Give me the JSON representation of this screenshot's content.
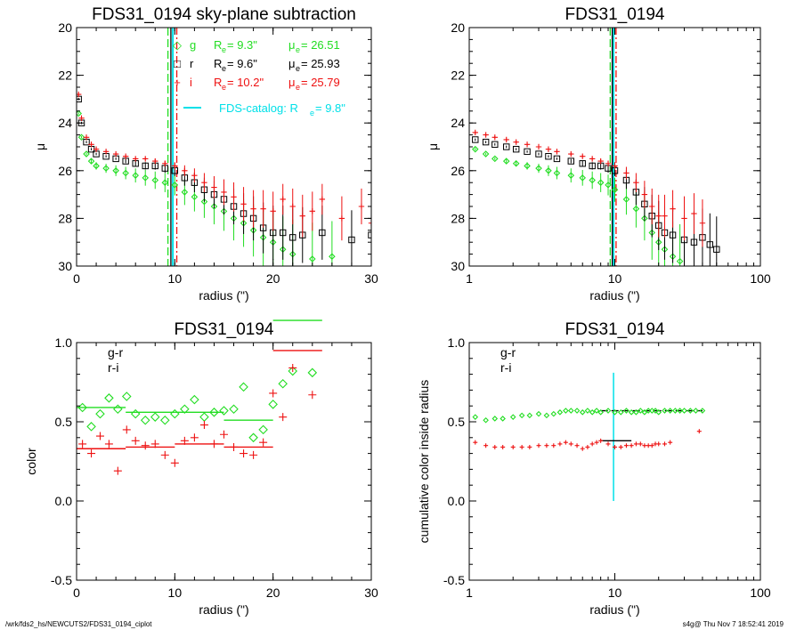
{
  "colors": {
    "g": "#22dd22",
    "r": "#000000",
    "i": "#ee1111",
    "catalog": "#00e0e8"
  },
  "footer": {
    "left": "/wrk/fds2_hs/NEWCUTS2/FDS31_0194_ciplot",
    "right": "s4g@  Thu Nov  7 18:52:41 2019"
  },
  "chart_data": [
    {
      "id": "top-left",
      "type": "scatter",
      "title": "FDS31_0194 sky-plane subtraction",
      "xlabel": "radius (\")",
      "ylabel": "μ",
      "xlim": [
        0,
        30
      ],
      "ylim": [
        30,
        20
      ],
      "xscale": "linear",
      "xticks": [
        "0",
        "10",
        "20",
        "30"
      ],
      "yticks": [
        "20",
        "22",
        "24",
        "26",
        "28",
        "30"
      ],
      "legend": [
        {
          "band": "g",
          "marker": "◇",
          "re_label": "R",
          "re_sub": "e",
          "re_value": "=  9.3\"",
          "mu_label": "μ",
          "mu_sub": "e",
          "mu_value": "= 26.51"
        },
        {
          "band": "r",
          "marker": "□",
          "re_label": "R",
          "re_sub": "e",
          "re_value": "=  9.6\"",
          "mu_label": "μ",
          "mu_sub": "e",
          "mu_value": "= 25.93"
        },
        {
          "band": "i",
          "marker": "+",
          "re_label": "R",
          "re_sub": "e",
          "re_value": "= 10.2\"",
          "mu_label": "μ",
          "mu_sub": "e",
          "mu_value": "= 25.79"
        }
      ],
      "catalog_legend": {
        "text": "FDS-catalog: R",
        "sub": "e",
        "value": "=   9.8\""
      },
      "vlines": {
        "g": 9.3,
        "r": 9.6,
        "i": 10.2,
        "catalog": 9.8
      },
      "series": [
        {
          "band": "g",
          "x": [
            0.2,
            0.5,
            1,
            1.5,
            2,
            3,
            4,
            5,
            6,
            7,
            8,
            9,
            10,
            11,
            12,
            13,
            14,
            15,
            16,
            17,
            18,
            19,
            20,
            21,
            22,
            24,
            26
          ],
          "y": [
            23.6,
            24.6,
            25.3,
            25.6,
            25.8,
            25.9,
            26.0,
            26.1,
            26.2,
            26.3,
            26.4,
            26.5,
            26.6,
            26.9,
            27.1,
            27.3,
            27.5,
            27.7,
            28.0,
            28.2,
            28.5,
            28.8,
            29.0,
            29.3,
            29.5,
            29.7,
            29.6
          ]
        },
        {
          "band": "r",
          "x": [
            0.2,
            0.5,
            1,
            1.5,
            2,
            3,
            4,
            5,
            6,
            7,
            8,
            9,
            10,
            11,
            12,
            13,
            14,
            15,
            16,
            17,
            18,
            19,
            20,
            21,
            22,
            23,
            25,
            28,
            30
          ],
          "y": [
            23.0,
            24.0,
            24.8,
            25.1,
            25.3,
            25.4,
            25.5,
            25.6,
            25.7,
            25.8,
            25.8,
            25.9,
            26.0,
            26.3,
            26.5,
            26.8,
            27.0,
            27.2,
            27.5,
            27.8,
            28.0,
            28.4,
            28.6,
            28.6,
            28.8,
            28.7,
            28.6,
            28.9,
            28.7
          ]
        },
        {
          "band": "i",
          "x": [
            0.2,
            0.5,
            1,
            1.5,
            2,
            3,
            4,
            5,
            6,
            7,
            8,
            9,
            10,
            11,
            12,
            13,
            14,
            15,
            16,
            17,
            18,
            19,
            20,
            21,
            22,
            23,
            24,
            25,
            27,
            29,
            30
          ],
          "y": [
            22.8,
            23.8,
            24.6,
            24.9,
            25.1,
            25.2,
            25.3,
            25.4,
            25.5,
            25.5,
            25.6,
            25.7,
            25.8,
            26.0,
            26.2,
            26.5,
            26.7,
            26.9,
            27.1,
            27.4,
            27.6,
            27.6,
            27.7,
            27.2,
            27.5,
            27.9,
            27.7,
            27.2,
            28.0,
            27.5,
            28.2
          ]
        }
      ]
    },
    {
      "id": "top-right",
      "type": "scatter",
      "title": "FDS31_0194",
      "xlabel": "radius (\")",
      "ylabel": "μ",
      "xlim": [
        1,
        100
      ],
      "ylim": [
        30,
        20
      ],
      "xscale": "log",
      "xticks": [
        "1",
        "10",
        "100"
      ],
      "yticks": [
        "20",
        "22",
        "24",
        "26",
        "28",
        "30"
      ],
      "vlines": {
        "g": 9.3,
        "r": 9.6,
        "i": 10.2,
        "catalog": 9.8
      },
      "series": [
        {
          "band": "g",
          "x": [
            1.1,
            1.3,
            1.5,
            1.8,
            2.1,
            2.5,
            3,
            3.5,
            4,
            5,
            6,
            7,
            8,
            9,
            10,
            12,
            14,
            16,
            18,
            20,
            22,
            25,
            28
          ],
          "y": [
            25.1,
            25.3,
            25.5,
            25.6,
            25.7,
            25.8,
            25.9,
            26.0,
            26.1,
            26.2,
            26.3,
            26.4,
            26.5,
            26.6,
            26.8,
            27.2,
            27.6,
            28.0,
            28.6,
            29.0,
            29.3,
            29.6,
            29.8
          ]
        },
        {
          "band": "r",
          "x": [
            1.1,
            1.3,
            1.5,
            1.8,
            2.1,
            2.5,
            3,
            3.5,
            4,
            5,
            6,
            7,
            8,
            9,
            10,
            12,
            14,
            16,
            18,
            20,
            22,
            25,
            30,
            35,
            40,
            45,
            50
          ],
          "y": [
            24.7,
            24.8,
            24.9,
            25.0,
            25.1,
            25.2,
            25.3,
            25.4,
            25.5,
            25.6,
            25.7,
            25.8,
            25.8,
            25.9,
            26.0,
            26.4,
            26.9,
            27.4,
            27.9,
            28.3,
            28.6,
            28.7,
            28.9,
            29.0,
            28.8,
            29.1,
            29.3
          ]
        },
        {
          "band": "i",
          "x": [
            1.1,
            1.3,
            1.5,
            1.8,
            2.1,
            2.5,
            3,
            3.5,
            4,
            5,
            6,
            7,
            8,
            9,
            10,
            12,
            14,
            16,
            18,
            20,
            22,
            25,
            30,
            35,
            40
          ],
          "y": [
            24.4,
            24.5,
            24.6,
            24.7,
            24.8,
            24.9,
            25.0,
            25.1,
            25.2,
            25.3,
            25.4,
            25.5,
            25.6,
            25.7,
            25.8,
            26.1,
            26.5,
            27.0,
            27.5,
            27.9,
            27.9,
            27.6,
            28.0,
            27.8,
            28.2
          ]
        }
      ]
    },
    {
      "id": "bottom-left",
      "type": "scatter",
      "title": "FDS31_0194",
      "xlabel": "radius (\")",
      "ylabel": "color",
      "xlim": [
        0,
        30
      ],
      "ylim": [
        -0.5,
        1.0
      ],
      "xscale": "linear",
      "xticks": [
        "0",
        "10",
        "20",
        "30"
      ],
      "yticks": [
        "-0.5",
        "0.0",
        "0.5",
        "1.0"
      ],
      "legend": [
        {
          "band": "g",
          "text": "g-r"
        },
        {
          "band": "i",
          "text": "r-i"
        }
      ],
      "series": [
        {
          "name": "g-r",
          "band": "g",
          "x": [
            0.6,
            1.5,
            2.4,
            3.3,
            4.2,
            5.1,
            6,
            7,
            8,
            9,
            10,
            11,
            12,
            13,
            14,
            15,
            16,
            17,
            18,
            19,
            20,
            21,
            22,
            24
          ],
          "y": [
            0.59,
            0.47,
            0.55,
            0.65,
            0.58,
            0.66,
            0.55,
            0.51,
            0.53,
            0.51,
            0.55,
            0.58,
            0.64,
            0.53,
            0.56,
            0.57,
            0.58,
            0.72,
            0.4,
            0.45,
            0.61,
            0.74,
            0.82,
            0.81
          ]
        },
        {
          "name": "r-i",
          "band": "i",
          "x": [
            0.6,
            1.5,
            2.4,
            3.3,
            4.2,
            5.1,
            6,
            7,
            8,
            9,
            10,
            11,
            12,
            13,
            14,
            15,
            16,
            17,
            18,
            19,
            20,
            21,
            22,
            24
          ],
          "y": [
            0.36,
            0.3,
            0.41,
            0.36,
            0.19,
            0.45,
            0.38,
            0.35,
            0.36,
            0.29,
            0.24,
            0.38,
            0.4,
            0.48,
            0.36,
            0.42,
            0.34,
            0.3,
            0.29,
            0.37,
            0.68,
            0.53,
            0.84,
            0.67
          ]
        }
      ],
      "segments": [
        {
          "band": "g",
          "x": [
            0,
            5
          ],
          "y": 0.59
        },
        {
          "band": "g",
          "x": [
            5,
            10
          ],
          "y": 0.56
        },
        {
          "band": "g",
          "x": [
            10,
            15
          ],
          "y": 0.56
        },
        {
          "band": "g",
          "x": [
            15,
            20
          ],
          "y": 0.51
        },
        {
          "band": "g",
          "x": [
            20,
            25
          ],
          "y": 1.14
        },
        {
          "band": "i",
          "x": [
            0,
            5
          ],
          "y": 0.33
        },
        {
          "band": "i",
          "x": [
            5,
            10
          ],
          "y": 0.34
        },
        {
          "band": "i",
          "x": [
            10,
            15
          ],
          "y": 0.36
        },
        {
          "band": "i",
          "x": [
            15,
            20
          ],
          "y": 0.34
        },
        {
          "band": "i",
          "x": [
            20,
            25
          ],
          "y": 0.95
        }
      ]
    },
    {
      "id": "bottom-right",
      "type": "scatter",
      "title": "FDS31_0194",
      "xlabel": "radius (\")",
      "ylabel": "cumulative color inside radius",
      "xlim": [
        1,
        100
      ],
      "ylim": [
        -0.5,
        1.0
      ],
      "xscale": "log",
      "xticks": [
        "1",
        "10",
        "100"
      ],
      "yticks": [
        "-0.5",
        "0.0",
        "0.5",
        "1.0"
      ],
      "legend": [
        {
          "band": "g",
          "text": "g-r"
        },
        {
          "band": "i",
          "text": "r-i"
        }
      ],
      "vline": {
        "band": "catalog",
        "x": 9.8,
        "y": [
          0.0,
          0.81
        ]
      },
      "series": [
        {
          "name": "g-r",
          "band": "g",
          "x": [
            1.1,
            1.3,
            1.5,
            1.7,
            2,
            2.3,
            2.6,
            3,
            3.4,
            3.8,
            4.2,
            4.6,
            5,
            5.5,
            6,
            6.5,
            7,
            7.5,
            8,
            9,
            10,
            11,
            12,
            13,
            14,
            15,
            16,
            17,
            18,
            19,
            20,
            22,
            24,
            26,
            28,
            30,
            33,
            36,
            40
          ],
          "y": [
            0.53,
            0.51,
            0.52,
            0.52,
            0.53,
            0.54,
            0.54,
            0.55,
            0.54,
            0.55,
            0.56,
            0.57,
            0.57,
            0.57,
            0.56,
            0.57,
            0.56,
            0.57,
            0.56,
            0.57,
            0.56,
            0.56,
            0.57,
            0.56,
            0.56,
            0.57,
            0.56,
            0.57,
            0.57,
            0.57,
            0.56,
            0.57,
            0.57,
            0.57,
            0.57,
            0.57,
            0.57,
            0.57,
            0.57
          ]
        },
        {
          "name": "r-i",
          "band": "i",
          "x": [
            1.1,
            1.3,
            1.5,
            1.7,
            2,
            2.3,
            2.6,
            3,
            3.4,
            3.8,
            4.2,
            4.6,
            5,
            5.5,
            6,
            6.5,
            7,
            7.5,
            8,
            9,
            10,
            11,
            12,
            13,
            14,
            15,
            16,
            17,
            18,
            19,
            20,
            22,
            24,
            38
          ],
          "y": [
            0.37,
            0.35,
            0.34,
            0.34,
            0.34,
            0.34,
            0.34,
            0.35,
            0.35,
            0.35,
            0.36,
            0.37,
            0.36,
            0.35,
            0.33,
            0.34,
            0.36,
            0.37,
            0.38,
            0.36,
            0.34,
            0.34,
            0.35,
            0.35,
            0.36,
            0.36,
            0.35,
            0.35,
            0.35,
            0.36,
            0.36,
            0.36,
            0.37,
            0.44
          ]
        }
      ],
      "segments": [
        {
          "band": "r",
          "x": [
            8,
            40
          ],
          "y": 0.57,
          "dash": true
        },
        {
          "band": "r",
          "x": [
            8,
            13
          ],
          "y": 0.38
        }
      ]
    }
  ]
}
